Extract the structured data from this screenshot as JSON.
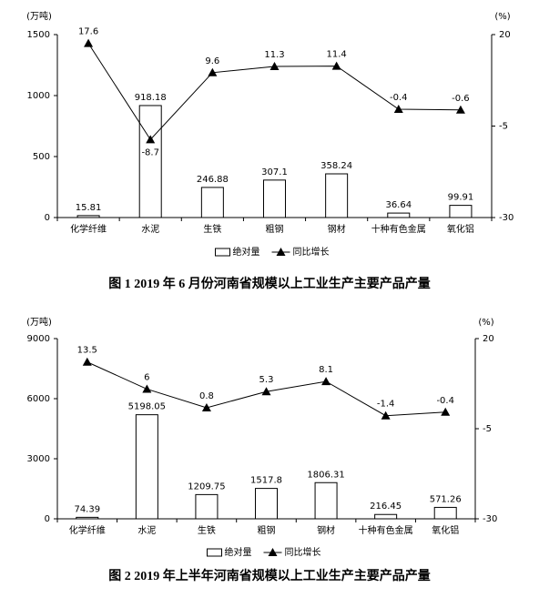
{
  "chart_data": [
    {
      "type": "bar_line",
      "title": "图 1 2019 年 6 月份河南省规模以上工业生产主要产品产量",
      "ylabel": "(万吨)",
      "y2label": "(%)",
      "categories": [
        "化学纤维",
        "水泥",
        "生铁",
        "粗钢",
        "钢材",
        "十种有色金属",
        "氧化铝"
      ],
      "series": [
        {
          "name": "绝对量",
          "color": "#ffffff",
          "values": [
            15.81,
            918.18,
            246.88,
            307.1,
            358.24,
            36.64,
            99.91
          ]
        },
        {
          "name": "同比增长",
          "color": "#000000",
          "axis": "y2",
          "values": [
            17.6,
            -8.7,
            9.6,
            11.3,
            11.4,
            -0.4,
            -0.6
          ]
        }
      ],
      "ylim": [
        0,
        1500
      ],
      "yticks": [
        0,
        500,
        1000,
        1500
      ],
      "y2lim": [
        -30,
        20
      ],
      "y2ticks": [
        -30,
        -5,
        20
      ]
    },
    {
      "type": "bar_line",
      "title": "图 2 2019 年上半年河南省规模以上工业生产主要产品产量",
      "ylabel": "(万吨)",
      "y2label": "(%)",
      "categories": [
        "化学纤维",
        "水泥",
        "生铁",
        "粗钢",
        "钢材",
        "十种有色金属",
        "氧化铝"
      ],
      "series": [
        {
          "name": "绝对量",
          "color": "#ffffff",
          "values": [
            74.39,
            5198.05,
            1209.75,
            1517.8,
            1806.31,
            216.45,
            571.26
          ]
        },
        {
          "name": "同比增长",
          "color": "#000000",
          "axis": "y2",
          "values": [
            13.5,
            6,
            0.8,
            5.3,
            8.1,
            -1.4,
            -0.4
          ]
        }
      ],
      "ylim": [
        0,
        9000
      ],
      "yticks": [
        0,
        3000,
        6000,
        9000
      ],
      "y2lim": [
        -30,
        20
      ],
      "y2ticks": [
        -30,
        -5,
        20
      ]
    }
  ]
}
